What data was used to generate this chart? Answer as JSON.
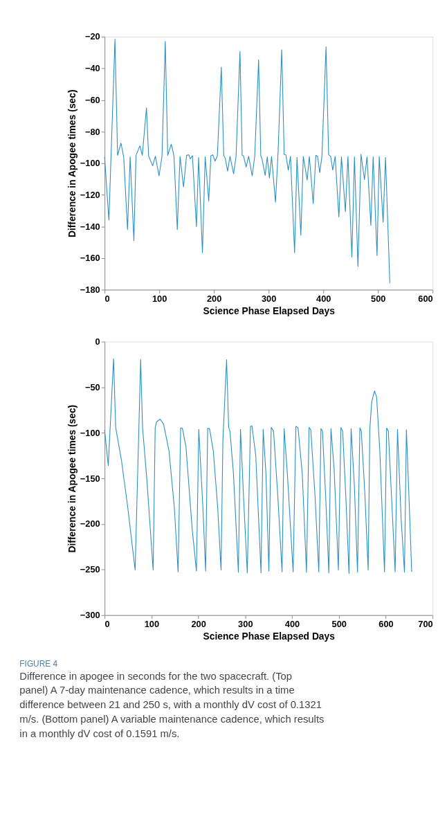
{
  "chart_data": [
    {
      "type": "line",
      "xlabel": "Science Phase Elapsed Days",
      "ylabel": "Difference in Apogee times (sec)",
      "xlim": [
        0,
        600
      ],
      "xticks": [
        0,
        100,
        200,
        300,
        400,
        500,
        600
      ],
      "ylim": [
        -180,
        -20
      ],
      "yticks": [
        -180,
        -160,
        -140,
        -120,
        -100,
        -80,
        -60,
        -40,
        -20
      ],
      "grid": false,
      "marker": "none",
      "line_style": "solid",
      "series": [
        {
          "color": "#2a8fc6",
          "x": [
            0,
            7.9,
            19,
            23.8,
            30,
            35,
            42,
            46.8,
            53.6,
            57.5,
            64.7,
            69,
            76.6,
            80.6,
            88,
            92.9,
            99.6,
            105,
            111,
            115.5,
            122,
            127,
            133,
            138,
            144.4,
            150,
            154,
            156.7,
            160.7,
            168,
            172,
            179,
            184,
            190.5,
            194.4,
            198,
            202,
            206.3,
            213.5,
            218,
            220.6,
            225,
            229.4,
            236,
            240.5,
            247.6,
            251.6,
            254,
            259,
            263.5,
            270,
            274.6,
            281.7,
            285.7,
            288,
            293.7,
            297.5,
            301.5,
            305.4,
            312.6,
            317.3,
            324,
            328.5,
            331.6,
            336,
            340,
            347.5,
            351.9,
            359,
            363.4,
            370.5,
            374.5,
            381.6,
            386.4,
            389.6,
            393.5,
            397.5,
            405,
            409.8,
            413.4,
            417.3,
            421.7,
            428.5,
            433.2,
            440.4,
            445.1,
            452.3,
            457,
            463.4,
            469,
            475.3,
            480,
            487,
            491.2,
            498.3,
            502.3,
            509.4,
            513.8,
            521.7
          ],
          "values": [
            -96,
            -136,
            -21.6,
            -95,
            -87.3,
            -96,
            -142,
            -96,
            -149,
            -95,
            -89,
            -95,
            -65,
            -95.5,
            -101.7,
            -95.6,
            -108,
            -95.6,
            -23,
            -95,
            -88,
            -95.6,
            -142,
            -95.7,
            -115,
            -95,
            -94.7,
            -97.3,
            -95.3,
            -140,
            -96.4,
            -156.7,
            -96,
            -124,
            -95.3,
            -94.7,
            -98.7,
            -95.3,
            -39.3,
            -95.3,
            -96.7,
            -105,
            -95.6,
            -106.7,
            -95.6,
            -29.3,
            -95,
            -95.3,
            -102.4,
            -95.6,
            -108,
            -95.6,
            -34.7,
            -95.3,
            -97.3,
            -107.7,
            -96,
            -109.3,
            -95.7,
            -124.7,
            -93.3,
            -28.3,
            -94.4,
            -94.7,
            -104.4,
            -95.7,
            -156.7,
            -96.3,
            -145.6,
            -95.7,
            -110.7,
            -95.7,
            -125.6,
            -95,
            -95.7,
            -106,
            -95.7,
            -26.4,
            -94.7,
            -95.7,
            -104.3,
            -95.7,
            -134,
            -96,
            -130.7,
            -95.7,
            -159.3,
            -96,
            -165.3,
            -94.4,
            -110.4,
            -96,
            -139.3,
            -96,
            -158.4,
            -95.7,
            -137.3,
            -96.4,
            -175.7
          ]
        }
      ]
    },
    {
      "type": "line",
      "xlabel": "Science Phase Elapsed Days",
      "ylabel": "Difference in Apogee times (sec)",
      "xlim": [
        0,
        700
      ],
      "xticks": [
        0,
        100,
        200,
        300,
        400,
        500,
        600,
        700
      ],
      "ylim": [
        -300,
        0
      ],
      "yticks": [
        -300,
        -250,
        -200,
        -150,
        -100,
        -50,
        0
      ],
      "grid": false,
      "marker": "none",
      "line_style": "solid",
      "annotations": [
        "FIGURE 4",
        "Difference in apogee in seconds for the two spacecraft. (Top panel) A 7-day maintenance cadence, which results in a time difference between 21 and 250 s, with a monthly dV cost of 0.1321 m/s. (Bottom panel) A variable maintenance cadence, which results in a monthly dV cost of 0.1591 m/s."
      ],
      "series": [
        {
          "color": "#2a8fc6",
          "x": [
            0,
            7.9,
            19.2,
            23.7,
            36,
            49.4,
            65.2,
            77,
            81,
            90,
            103.6,
            108,
            111,
            118.5,
            126,
            137.5,
            148.8,
            156.9,
            162.3,
            166,
            173.6,
            187,
            196,
            201,
            209.7,
            215.6,
            220,
            224,
            232,
            241.3,
            248.5,
            252.5,
            260.3,
            264.8,
            267.5,
            275,
            285.5,
            290,
            296.4,
            304.5,
            311.3,
            314.5,
            322.6,
            333.8,
            338.4,
            344.3,
            350.6,
            355.5,
            360.5,
            369.6,
            378.7,
            383.2,
            390,
            402.3,
            408.2,
            412.7,
            421.8,
            430.8,
            436.3,
            440,
            449,
            457.1,
            461.7,
            464.9,
            471.7,
            478.5,
            483,
            489.8,
            498.9,
            504.3,
            508,
            514.7,
            521.5,
            526,
            532.9,
            539.7,
            544.7,
            547.8,
            555.6,
            562.4,
            566,
            570,
            576,
            580.5,
            587.3,
            597.3,
            601.8,
            605.4,
            612.2,
            620,
            625,
            632.7,
            639.9,
            644,
            649.4,
            655.3
          ],
          "values": [
            -96.7,
            -136,
            -18.7,
            -94.2,
            -130,
            -181.6,
            -250.5,
            -19.7,
            -94.2,
            -149.6,
            -250.5,
            -94.2,
            -88,
            -85,
            -90.6,
            -120,
            -181.6,
            -252.5,
            -94.7,
            -95,
            -115,
            -206,
            -251.7,
            -96.2,
            -181.6,
            -251.7,
            -95,
            -95.5,
            -120,
            -181.6,
            -250.5,
            -107.8,
            -19.7,
            -94.2,
            -98,
            -144.7,
            -253,
            -96.2,
            -169.3,
            -253.7,
            -93,
            -92.3,
            -125,
            -253.7,
            -96.2,
            -144.7,
            -251.7,
            -94.2,
            -98,
            -169.3,
            -252.5,
            -95.5,
            -144.7,
            -252.5,
            -93,
            -94.2,
            -144.7,
            -253,
            -94.2,
            -96.7,
            -169.3,
            -252.5,
            -95.5,
            -98,
            -169.3,
            -253.7,
            -95.5,
            -139.8,
            -250.5,
            -94.2,
            -98,
            -169.3,
            -254.2,
            -95.5,
            -157,
            -253,
            -94.7,
            -98,
            -169.3,
            -250.5,
            -95.5,
            -66,
            -54.1,
            -61,
            -120,
            -252.5,
            -94.7,
            -98,
            -169.3,
            -252.5,
            -96.2,
            -194,
            -253,
            -96.7,
            -169.3,
            -252.5
          ]
        }
      ]
    }
  ]
}
